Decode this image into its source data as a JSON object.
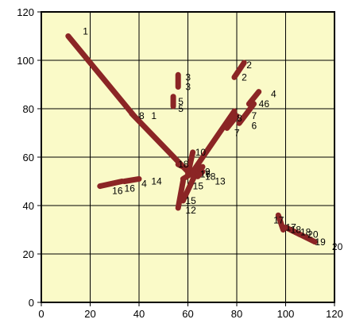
{
  "chart_data": {
    "type": "line",
    "title": "",
    "xlabel": "",
    "ylabel": "",
    "xlim": [
      0,
      120
    ],
    "ylim": [
      0,
      120
    ],
    "x_ticks": [
      0,
      20,
      40,
      60,
      80,
      100,
      120
    ],
    "y_ticks": [
      0,
      20,
      40,
      60,
      80,
      100,
      120
    ],
    "grid": true,
    "legend": "none",
    "colors": {
      "plot_background": "#fafac8",
      "segment": "#8b2525",
      "grid": "#000000"
    },
    "segments": [
      {
        "from": {
          "x": 11,
          "y": 110,
          "label": "1"
        },
        "to": {
          "x": 38,
          "y": 77,
          "label": "1"
        }
      },
      {
        "from": {
          "x": 83,
          "y": 99,
          "label": "2"
        },
        "to": {
          "x": 79,
          "y": 93,
          "label": "2"
        }
      },
      {
        "from": {
          "x": 56,
          "y": 94,
          "label": "3"
        },
        "to": {
          "x": 56,
          "y": 89,
          "label": "3"
        }
      },
      {
        "from": {
          "x": 89,
          "y": 87,
          "label": "4"
        },
        "to": {
          "x": 85,
          "y": 82,
          "label": "4"
        }
      },
      {
        "from": {
          "x": 54,
          "y": 85,
          "label": "5"
        },
        "to": {
          "x": 54,
          "y": 81,
          "label": "5"
        }
      },
      {
        "from": {
          "x": 87,
          "y": 82,
          "label": "6"
        },
        "to": {
          "x": 81,
          "y": 74,
          "label": "6"
        }
      },
      {
        "from": {
          "x": 80,
          "y": 77,
          "label": "7"
        },
        "to": {
          "x": 76,
          "y": 72,
          "label": "7"
        }
      },
      {
        "from": {
          "x": 37,
          "y": 78,
          "label": "8"
        },
        "to": {
          "x": 60,
          "y": 54,
          "label": "8"
        }
      },
      {
        "from": {
          "x": 66,
          "y": 56,
          "label": "9"
        },
        "to": {
          "x": 58,
          "y": 51,
          "label": "9"
        }
      },
      {
        "from": {
          "x": 62,
          "y": 62,
          "label": "10"
        },
        "to": {
          "x": 60,
          "y": 53,
          "label": "10"
        }
      },
      {
        "from": {
          "x": 56,
          "y": 57,
          "label": "11"
        },
        "to": {
          "x": 64,
          "y": 53,
          "label": "11"
        }
      },
      {
        "from": {
          "x": 58,
          "y": 42,
          "label": "12"
        },
        "to": {
          "x": 64,
          "y": 55,
          "label": "12"
        }
      },
      {
        "from": {
          "x": 66,
          "y": 54,
          "label": "13"
        },
        "to": {
          "x": 64,
          "y": 52,
          "label": "13"
        }
      },
      {
        "from": {
          "x": 40,
          "y": 51,
          "label": "14"
        },
        "to": {
          "x": 34,
          "y": 50,
          "label": "14"
        }
      },
      {
        "from": {
          "x": 56,
          "y": 39,
          "label": "15"
        },
        "to": {
          "x": 58,
          "y": 50,
          "label": "15"
        }
      },
      {
        "from": {
          "x": 24,
          "y": 48,
          "label": "16"
        },
        "to": {
          "x": 33,
          "y": 50,
          "label": "16"
        }
      },
      {
        "from": {
          "x": 97,
          "y": 36,
          "label": "17"
        },
        "to": {
          "x": 99,
          "y": 30,
          "label": "17"
        }
      },
      {
        "from": {
          "x": 100,
          "y": 31,
          "label": "18"
        },
        "to": {
          "x": 104,
          "y": 29,
          "label": "18"
        }
      },
      {
        "from": {
          "x": 102,
          "y": 30,
          "label": "19"
        },
        "to": {
          "x": 106,
          "y": 28,
          "label": "19"
        }
      },
      {
        "from": {
          "x": 104,
          "y": 29,
          "label": "20"
        },
        "to": {
          "x": 112,
          "y": 25,
          "label": "20"
        }
      },
      {
        "from": {
          "x": 62,
          "y": 54,
          "label": ""
        },
        "to": {
          "x": 79,
          "y": 79,
          "label": ""
        }
      }
    ],
    "point_labels": [
      {
        "text": "1",
        "x": 17,
        "y": 112
      },
      {
        "text": "1",
        "x": 45,
        "y": 77
      },
      {
        "text": "2",
        "x": 84,
        "y": 98
      },
      {
        "text": "2",
        "x": 82,
        "y": 93
      },
      {
        "text": "3",
        "x": 59,
        "y": 93
      },
      {
        "text": "3",
        "x": 59,
        "y": 89
      },
      {
        "text": "4",
        "x": 94,
        "y": 86
      },
      {
        "text": "4",
        "x": 41,
        "y": 49
      },
      {
        "text": "46",
        "x": 89,
        "y": 82
      },
      {
        "text": "5",
        "x": 56,
        "y": 83
      },
      {
        "text": "5",
        "x": 56,
        "y": 80
      },
      {
        "text": "6",
        "x": 86,
        "y": 73
      },
      {
        "text": "7",
        "x": 86,
        "y": 77
      },
      {
        "text": "7",
        "x": 79,
        "y": 70
      },
      {
        "text": "8",
        "x": 40,
        "y": 77
      },
      {
        "text": "8",
        "x": 80,
        "y": 76
      },
      {
        "text": "10",
        "x": 63,
        "y": 62
      },
      {
        "text": "18",
        "x": 56,
        "y": 57
      },
      {
        "text": "9",
        "x": 67,
        "y": 54
      },
      {
        "text": "16",
        "x": 65,
        "y": 53
      },
      {
        "text": "18",
        "x": 67,
        "y": 52
      },
      {
        "text": "13",
        "x": 71,
        "y": 50
      },
      {
        "text": "15",
        "x": 62,
        "y": 48
      },
      {
        "text": "15",
        "x": 59,
        "y": 42
      },
      {
        "text": "12",
        "x": 59,
        "y": 38
      },
      {
        "text": "14",
        "x": 45,
        "y": 50
      },
      {
        "text": "16",
        "x": 29,
        "y": 46
      },
      {
        "text": "16",
        "x": 34,
        "y": 47
      },
      {
        "text": "17",
        "x": 95,
        "y": 34
      },
      {
        "text": "17",
        "x": 100,
        "y": 31
      },
      {
        "text": "18",
        "x": 102,
        "y": 30
      },
      {
        "text": "18",
        "x": 106,
        "y": 29
      },
      {
        "text": "20",
        "x": 109,
        "y": 28
      },
      {
        "text": "19",
        "x": 112,
        "y": 25
      },
      {
        "text": "20",
        "x": 119,
        "y": 23
      }
    ]
  }
}
